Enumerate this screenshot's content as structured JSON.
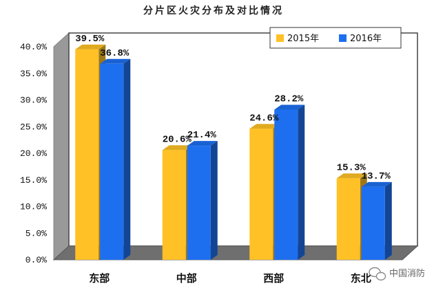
{
  "chart_data": {
    "type": "bar",
    "title": "分片区火灾分布及对比情况",
    "categories": [
      "东部",
      "中部",
      "西部",
      "东北"
    ],
    "series": [
      {
        "name": "2015年",
        "values": [
          39.5,
          20.6,
          24.6,
          15.3
        ],
        "labels": [
          "39.5%",
          "20.6%",
          "24.6%",
          "15.3%"
        ],
        "color": "#FFC125"
      },
      {
        "name": "2016年",
        "values": [
          36.8,
          21.4,
          28.2,
          13.7
        ],
        "labels": [
          "36.8%",
          "21.4%",
          "28.2%",
          "13.7%"
        ],
        "color": "#1E6FF0"
      }
    ],
    "ylim": [
      0,
      40
    ],
    "yticks": [
      "0.0%",
      "5.0%",
      "10.0%",
      "15.0%",
      "20.0%",
      "25.0%",
      "30.0%",
      "35.0%",
      "40.0%"
    ],
    "legend_position": "top-right",
    "grid": false,
    "style": "3d"
  },
  "watermark": {
    "text": "中国消防",
    "icon": "wechat-icon"
  }
}
